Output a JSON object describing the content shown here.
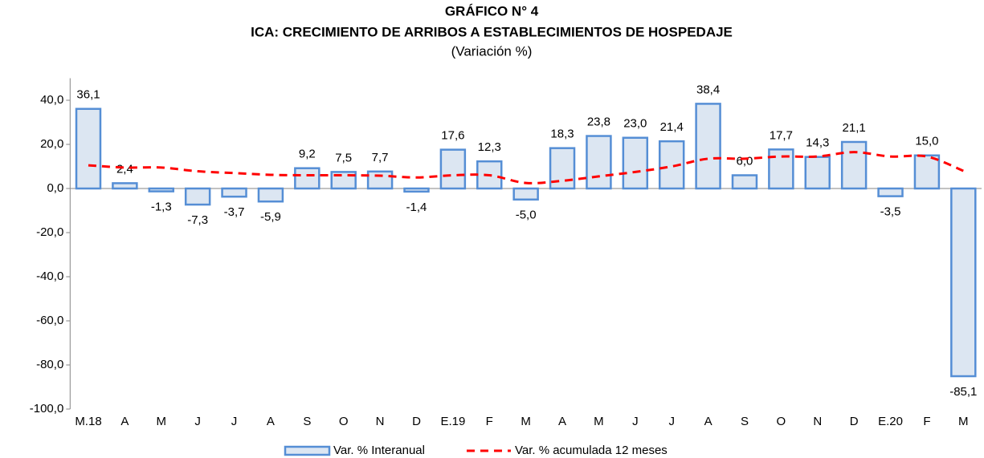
{
  "chart_data": {
    "type": "bar",
    "title": "GRÁFICO N° 4",
    "subtitle": "ICA: CRECIMIENTO DE ARRIBOS A ESTABLECIMIENTOS DE HOSPEDAJE",
    "unit_note": "(Variación %)",
    "categories": [
      "M.18",
      "A",
      "M",
      "J",
      "J",
      "A",
      "S",
      "O",
      "N",
      "D",
      "E.19",
      "F",
      "M",
      "A",
      "M",
      "J",
      "J",
      "A",
      "S",
      "O",
      "N",
      "D",
      "E.20",
      "F",
      "M"
    ],
    "series": [
      {
        "name": "Var. % Interanual",
        "type": "bar",
        "color": "#dce6f2",
        "edge_color": "#558ed5",
        "values": [
          36.1,
          2.4,
          -1.3,
          -7.3,
          -3.7,
          -5.9,
          9.2,
          7.5,
          7.7,
          -1.4,
          17.6,
          12.3,
          -5.0,
          18.3,
          23.8,
          23.0,
          21.4,
          38.4,
          6.0,
          17.7,
          14.3,
          21.1,
          -3.5,
          15.0,
          -85.1
        ],
        "value_labels": [
          "36,1",
          "2,4",
          "-1,3",
          "-7,3",
          "-3,7",
          "-5,9",
          "9,2",
          "7,5",
          "7,7",
          "-1,4",
          "17,6",
          "12,3",
          "-5,0",
          "18,3",
          "23,8",
          "23,0",
          "21,4",
          "38,4",
          "6,0",
          "17,7",
          "14,3",
          "21,1",
          "-3,5",
          "15,0",
          "-85,1"
        ]
      },
      {
        "name": "Var. % acumulada 12 meses",
        "type": "line",
        "color": "#ff0000",
        "dashed": true,
        "values": [
          10.5,
          9.5,
          9.5,
          7.8,
          7.0,
          6.2,
          6.0,
          6.0,
          5.8,
          5.0,
          6.0,
          6.0,
          2.5,
          3.5,
          5.5,
          7.5,
          10.0,
          13.5,
          13.5,
          14.5,
          14.5,
          16.5,
          14.5,
          14.5,
          8.0
        ]
      }
    ],
    "ylim": [
      -100,
      50
    ],
    "yticks": [
      {
        "value": -100,
        "label": "-100,0"
      },
      {
        "value": -80,
        "label": "-80,0"
      },
      {
        "value": -60,
        "label": "-60,0"
      },
      {
        "value": -40,
        "label": "-40,0"
      },
      {
        "value": -20,
        "label": "-20,0"
      },
      {
        "value": 0,
        "label": "0,0"
      },
      {
        "value": 20,
        "label": "20,0"
      },
      {
        "value": 40,
        "label": "40,0"
      }
    ],
    "legend": "bottom"
  }
}
